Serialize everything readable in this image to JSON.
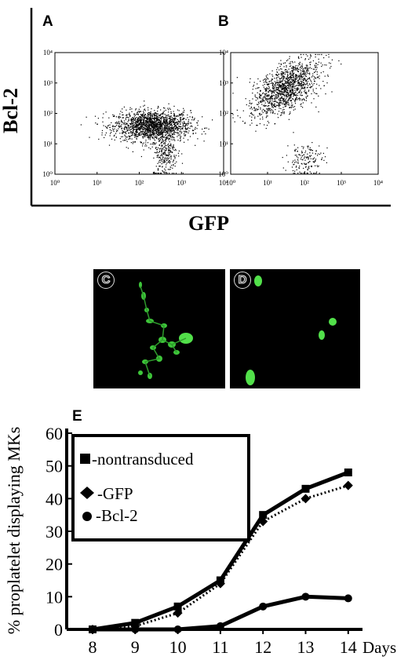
{
  "figure": {
    "panel_labels": [
      "A",
      "B",
      "C",
      "D",
      "E"
    ],
    "flow_y_label": "Bcl-2",
    "flow_x_label": "GFP",
    "flow_ticks": [
      "10⁰",
      "10¹",
      "10²",
      "10³",
      "10⁴"
    ]
  },
  "chart_data": [
    {
      "type": "scatter",
      "panel": "A",
      "x_scale": "log",
      "y_scale": "log",
      "xlim": [
        1,
        10000
      ],
      "ylim": [
        1,
        10000
      ],
      "clusters": [
        {
          "center_x": 200,
          "center_y": 40,
          "spread_decades_x": 0.45,
          "spread_decades_y": 0.25
        },
        {
          "center_x": 400,
          "center_y": 5,
          "spread_decades_x": 0.15,
          "spread_decades_y": 0.4
        }
      ]
    },
    {
      "type": "scatter",
      "panel": "B",
      "x_scale": "log",
      "y_scale": "log",
      "xlim": [
        1,
        10000
      ],
      "ylim": [
        1,
        10000
      ],
      "clusters": [
        {
          "center_x": 30,
          "center_y": 700,
          "spread_decades_x": 0.3,
          "spread_decades_y": 0.3
        },
        {
          "center_x": 100,
          "center_y": 3,
          "spread_decades_x": 0.25,
          "spread_decades_y": 0.3
        }
      ]
    },
    {
      "type": "line",
      "panel": "E",
      "x": [
        8,
        9,
        10,
        11,
        12,
        13,
        14
      ],
      "x_tick_labels": [
        "8",
        "9",
        "10",
        "11",
        "12",
        "13",
        "14"
      ],
      "x_suffix": "Days",
      "ylabel": "% proplatelet displaying MKs",
      "ylim": [
        0,
        60
      ],
      "yticks": [
        "0",
        "10",
        "20",
        "30",
        "40",
        "50",
        "60"
      ],
      "legend_placement": "top-left",
      "series": [
        {
          "name": "-nontransduced",
          "marker": "square",
          "style": "solid",
          "values": [
            0,
            2,
            7,
            15,
            35,
            43,
            48
          ]
        },
        {
          "name": "-GFP",
          "marker": "diamond",
          "style": "dotted",
          "values": [
            0,
            1,
            5,
            14,
            33,
            40,
            44
          ]
        },
        {
          "name": "-Bcl-2",
          "marker": "circle",
          "style": "solid",
          "values": [
            0,
            0,
            0,
            1,
            7,
            10,
            9.5
          ]
        }
      ]
    }
  ]
}
